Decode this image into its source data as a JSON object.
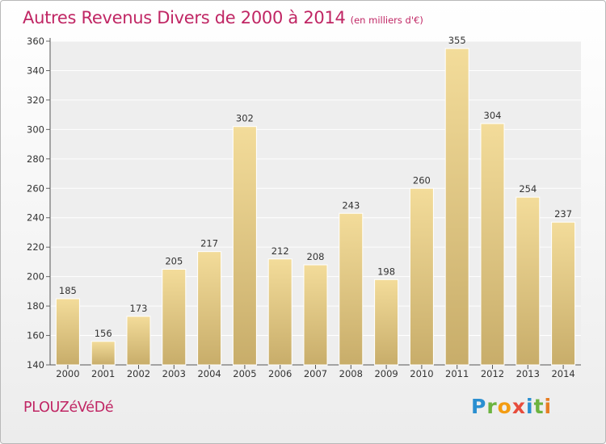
{
  "header": {
    "title": "Autres Revenus Divers de 2000 à 2014",
    "subtitle": "(en milliers d'€)"
  },
  "footer": {
    "commune": "PLOUZéVéDé",
    "brand": "Proxiti",
    "brand_letters": [
      {
        "char": "P",
        "color": "#2a8fd0"
      },
      {
        "char": "r",
        "color": "#6cb33f"
      },
      {
        "char": "o",
        "color": "#f39c12"
      },
      {
        "char": "x",
        "color": "#e74c3c"
      },
      {
        "char": "i",
        "color": "#2a8fd0"
      },
      {
        "char": "t",
        "color": "#6cb33f"
      },
      {
        "char": "i",
        "color": "#e67e22"
      }
    ]
  },
  "chart_data": {
    "type": "bar",
    "title": "Autres Revenus Divers de 2000 à 2014",
    "subtitle": "(en milliers d'€)",
    "categories": [
      "2000",
      "2001",
      "2002",
      "2003",
      "2004",
      "2005",
      "2006",
      "2007",
      "2008",
      "2009",
      "2010",
      "2011",
      "2012",
      "2013",
      "2014"
    ],
    "values": [
      185,
      156,
      173,
      205,
      217,
      302,
      212,
      208,
      243,
      198,
      260,
      355,
      304,
      254,
      237
    ],
    "ylim": [
      140,
      360
    ],
    "yticks": [
      140,
      160,
      180,
      200,
      220,
      240,
      260,
      280,
      300,
      320,
      340,
      360
    ],
    "grid": true,
    "bar_color_light": "#f3dc9a",
    "bar_color_dark": "#c8ad6a"
  }
}
